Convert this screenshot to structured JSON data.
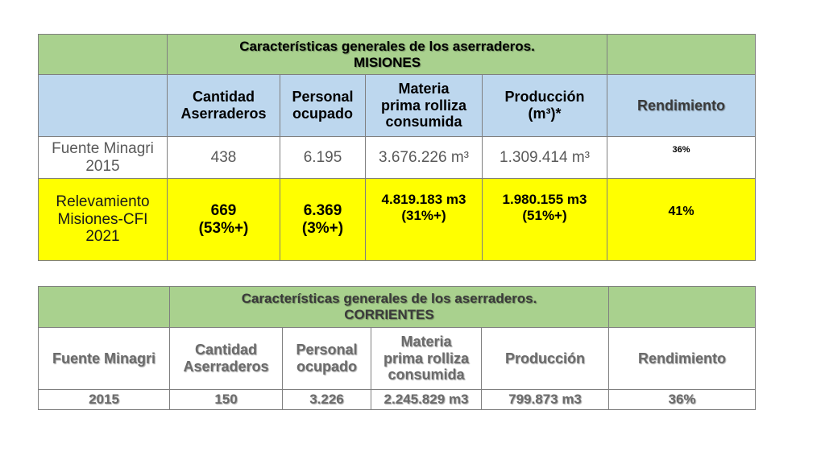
{
  "misiones": {
    "title_line1": "Características generales de los aserraderos.",
    "title_line2": "MISIONES",
    "headers": {
      "cantidad": [
        "Cantidad",
        "Aserraderos"
      ],
      "personal": [
        "Personal",
        "ocupado"
      ],
      "materia": [
        "Materia",
        "prima rolliza",
        "consumida"
      ],
      "produccion": [
        "Producción",
        "(m³)*"
      ],
      "rendimiento": "Rendimiento"
    },
    "row1": {
      "label": [
        "Fuente Minagri",
        "2015"
      ],
      "cantidad": "438",
      "personal": "6.195",
      "materia": "3.676.226 m³",
      "produccion": "1.309.414 m³",
      "rendimiento": "36%"
    },
    "row2": {
      "label": [
        "Relevamiento",
        "Misiones-CFI",
        "2021"
      ],
      "cantidad": [
        "669",
        "(53%+)"
      ],
      "personal": [
        "6.369",
        "(3%+)"
      ],
      "materia": [
        "4.819.183 m3",
        "(31%+)"
      ],
      "produccion": [
        "1.980.155 m3",
        "(51%+)"
      ],
      "rendimiento": "41%"
    }
  },
  "corrientes": {
    "title_line1": "Características generales de los aserraderos.",
    "title_line2": "CORRIENTES",
    "headers": {
      "fuente": "Fuente Minagri",
      "cantidad": [
        "Cantidad",
        "Aserraderos"
      ],
      "personal": [
        "Personal",
        "ocupado"
      ],
      "materia": [
        "Materia",
        "prima rolliza",
        "consumida"
      ],
      "produccion": "Producción",
      "rendimiento": "Rendimiento"
    },
    "row1": {
      "label": "2015",
      "cantidad": "150",
      "personal": "3.226",
      "materia": "2.245.829 m3",
      "produccion": "799.873 m3",
      "rendimiento": "36%"
    }
  }
}
